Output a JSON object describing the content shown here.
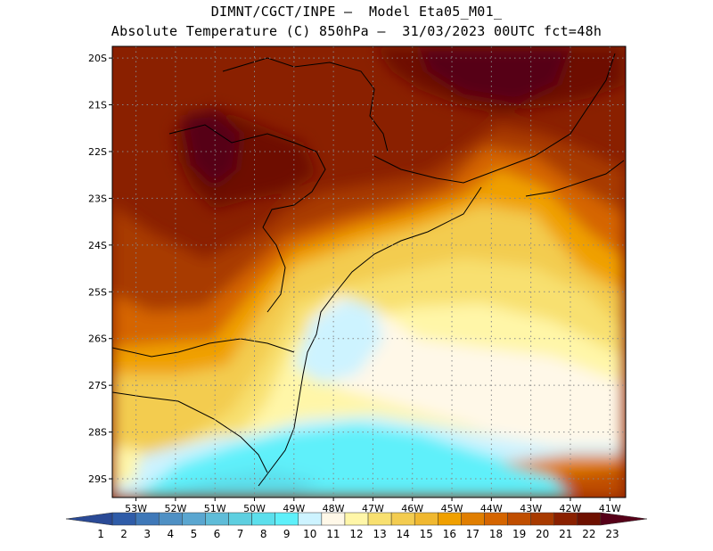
{
  "title": {
    "line1": "DIMNT/CGCT/INPE –  Model Eta05_M01_",
    "line2": "Absolute Temperature (C) 850hPa –  31/03/2023 00UTC fct=48h"
  },
  "map": {
    "lat_labels": [
      "20S",
      "21S",
      "22S",
      "23S",
      "24S",
      "25S",
      "26S",
      "27S",
      "28S",
      "29S"
    ],
    "lon_labels": [
      "53W",
      "52W",
      "51W",
      "50W",
      "49W",
      "48W",
      "47W",
      "46W",
      "45W",
      "44W",
      "43W",
      "42W",
      "41W"
    ],
    "lat_values": [
      -20,
      -21,
      -22,
      -23,
      -24,
      -25,
      -26,
      -27,
      -28,
      -29
    ],
    "lon_values": [
      -53,
      -52,
      -51,
      -50,
      -49,
      -48,
      -47,
      -46,
      -45,
      -44,
      -43,
      -42,
      -41
    ],
    "extent": {
      "lon_min": -53.6,
      "lon_max": -40.6,
      "lat_max": -19.75,
      "lat_min": -29.4
    }
  },
  "colorbar": {
    "labels": [
      "1",
      "2",
      "3",
      "4",
      "5",
      "6",
      "7",
      "8",
      "9",
      "10",
      "11",
      "12",
      "13",
      "14",
      "15",
      "16",
      "17",
      "18",
      "19",
      "20",
      "21",
      "22",
      "23"
    ],
    "colors": [
      "#2a4a96",
      "#2f5ca8",
      "#3f78b8",
      "#4f90c4",
      "#5aa6d0",
      "#5fbcd8",
      "#5ecfe0",
      "#5cdfec",
      "#5ef0fa",
      "#cdf3ff",
      "#fff8e8",
      "#fff6a8",
      "#f8e070",
      "#f3cc50",
      "#f0b830",
      "#f0a000",
      "#e07e00",
      "#d56500",
      "#c04e00",
      "#a83a00",
      "#8a2000",
      "#6e1000",
      "#560018"
    ]
  }
}
